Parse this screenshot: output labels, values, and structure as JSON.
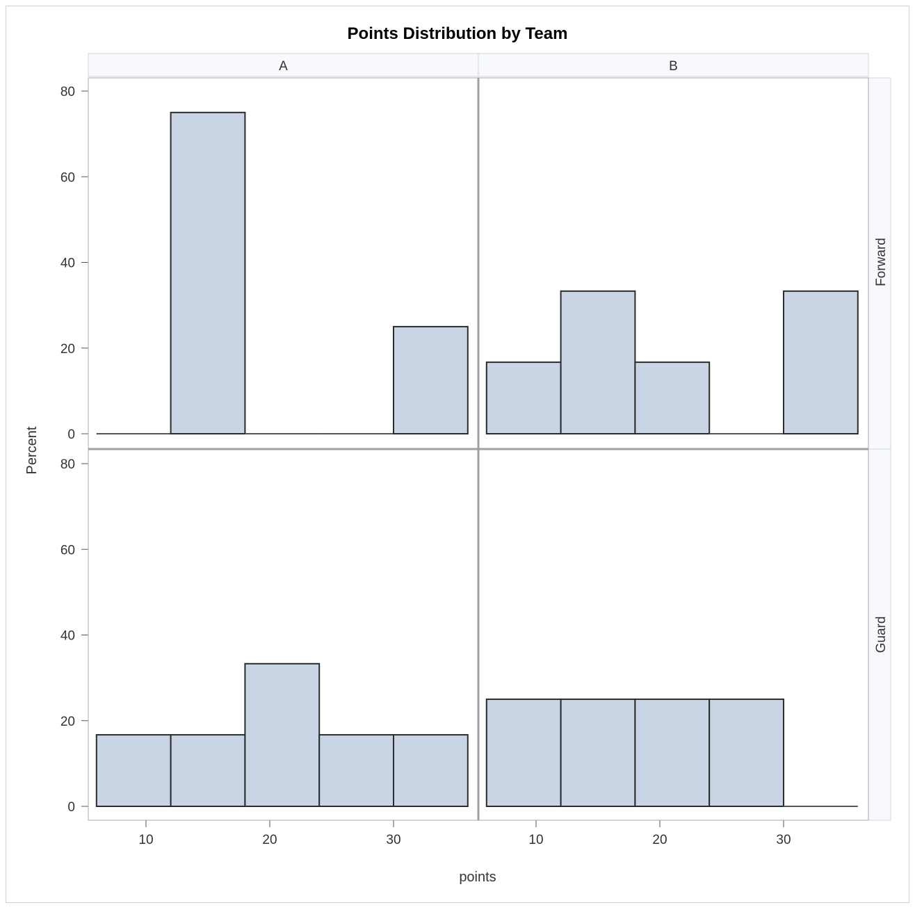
{
  "chart_data": {
    "type": "bar",
    "title": "Points Distribution by Team",
    "xlabel": "points",
    "ylabel": "Percent",
    "xlim": [
      6,
      36
    ],
    "ylim": [
      0,
      80
    ],
    "xticks": [
      10,
      20,
      30
    ],
    "yticks": [
      0,
      20,
      40,
      60,
      80
    ],
    "bin_width": 6,
    "bin_starts": [
      6,
      12,
      18,
      24,
      30
    ],
    "columns": [
      "A",
      "B"
    ],
    "rows": [
      "Forward",
      "Guard"
    ],
    "panels": [
      {
        "column": "A",
        "row": "Forward",
        "values": [
          0,
          75,
          0,
          0,
          25
        ]
      },
      {
        "column": "B",
        "row": "Forward",
        "values": [
          16.7,
          33.3,
          16.7,
          0,
          33.3
        ]
      },
      {
        "column": "A",
        "row": "Guard",
        "values": [
          16.7,
          16.7,
          33.3,
          16.7,
          16.7
        ]
      },
      {
        "column": "B",
        "row": "Guard",
        "values": [
          25,
          25,
          25,
          25,
          0
        ]
      }
    ],
    "colors": {
      "bar_fill": "#c9d5e4",
      "bar_edge": "#2b2b2b",
      "header_fill": "#f7f9fe",
      "frame": "#a8a8a8",
      "divider": "#a0a0a0"
    }
  }
}
